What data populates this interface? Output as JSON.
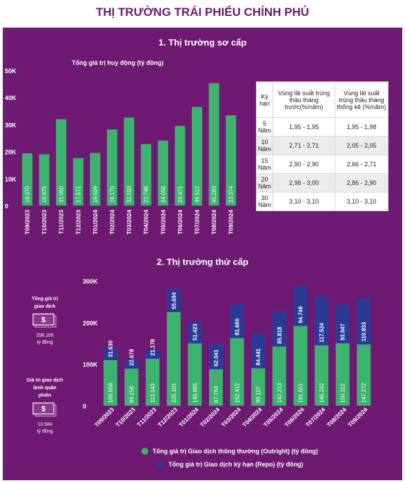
{
  "title": "THỊ TRƯỜNG TRÁI PHIẾU CHÍNH PHỦ",
  "colors": {
    "panel": "#6e1a72",
    "green": "#3cb46e",
    "navy": "#2b3a96",
    "title": "#6a1a6e"
  },
  "primary": {
    "section_title": "1. Thị trường sơ cấp",
    "subtitle": "Tổng giá trị huy động (tỷ đồng)"
  },
  "secondary": {
    "section_title": "2. Thị trường thứ cấp",
    "outright_box": {
      "label": "Tổng giá trị giao dịch",
      "value": "258.105",
      "unit": "tỷ đồng",
      "icon": "money-icon"
    },
    "repo_box": {
      "label": "Giá trị giao dịch bình quân phiên",
      "value": "13.584",
      "unit": "tỷ đồng",
      "icon": "money-icon"
    },
    "legend_outright": "Tổng giá trị Giao dịch thông thường (Outright) (tỷ đồng)",
    "legend_repo": "Tổng giá trị Giao dịch kỳ hạn (Repo) (tỷ đồng)"
  },
  "table": {
    "headers": [
      "Kỳ hạn",
      "Vùng lãi suất trúng thầu tháng trước(%/năm)",
      "Vùng lãi suất trúng thầu tháng thống kê (%/năm)"
    ],
    "rows": [
      [
        "5 Năm",
        "1,95 - 1,95",
        "1,95 - 1,98"
      ],
      [
        "10 Năm",
        "2,71 - 2,71",
        "2,05 - 2,05"
      ],
      [
        "15 Năm",
        "2,90 - 2,90",
        "2,66 - 2,71"
      ],
      [
        "20 Năm",
        "2,98 - 3,00",
        "2,86 - 2,90"
      ],
      [
        "30 Năm",
        "3,10 - 3,10",
        "3,10 - 3,10"
      ]
    ]
  },
  "chart_data": [
    {
      "type": "bar",
      "title": "1. Thị trường sơ cấp",
      "subtitle": "Tổng giá trị huy động (tỷ đồng)",
      "categories": [
        "T09/2023",
        "T10/2023",
        "T11/2023",
        "T12/2023",
        "T01/2024",
        "T02/2024",
        "T03/2024",
        "T04/2024",
        "T05/2024",
        "T06/2024",
        "T07/2024",
        "T08/2024",
        "T09/2024"
      ],
      "values": [
        19370,
        18975,
        31950,
        17571,
        19509,
        28170,
        32550,
        22746,
        24056,
        29471,
        36512,
        45283,
        33374
      ],
      "value_labels": [
        "19.370",
        "18.975",
        "31.950",
        "17.571",
        "19.509",
        "28.170",
        "32.550",
        "22.746",
        "24.056",
        "29.471",
        "36.512",
        "45.283",
        "33.374"
      ],
      "ylim": [
        0,
        50000
      ],
      "yticks": [
        "0",
        "10K",
        "20K",
        "30K",
        "40K",
        "50K"
      ]
    },
    {
      "type": "bar",
      "stacked": true,
      "title": "2. Thị trường thứ cấp",
      "categories": [
        "T09/2023",
        "T10/2023",
        "T11/2023",
        "T12/2023",
        "T01/2024",
        "T02/2024",
        "T03/2024",
        "T04/2024",
        "T05/2024",
        "T06/2024",
        "T07/2024",
        "T08/2024",
        "T09/2024"
      ],
      "series": [
        {
          "name": "Tổng giá trị Giao dịch thông thường (Outright) (tỷ đồng)",
          "values": [
            109658,
            89258,
            113143,
            225101,
            149885,
            87764,
            162412,
            90117,
            142213,
            191551,
            145242,
            150112,
            147272
          ],
          "value_labels": [
            "109.658",
            "89.258",
            "113.143",
            "225.101",
            "149.885",
            "87.764",
            "162.412",
            "90.117",
            "142.213",
            "191.551",
            "145.242",
            "150.112",
            "147.272"
          ]
        },
        {
          "name": "Tổng giá trị Giao dịch kỳ hạn (Repo) (tỷ đồng)",
          "values": [
            31630,
            22678,
            21178,
            55694,
            51423,
            62041,
            81660,
            84441,
            85818,
            94748,
            117524,
            93047,
            110833
          ],
          "value_labels": [
            "31.630",
            "22.678",
            "21.178",
            "55.694",
            "51.423",
            "62.041",
            "81.660",
            "84.441",
            "85.818",
            "94.748",
            "117.524",
            "93.047",
            "110.833"
          ]
        }
      ],
      "ylim": [
        0,
        300000
      ],
      "yticks": [
        "0",
        "100K",
        "200K",
        "300K"
      ]
    }
  ]
}
